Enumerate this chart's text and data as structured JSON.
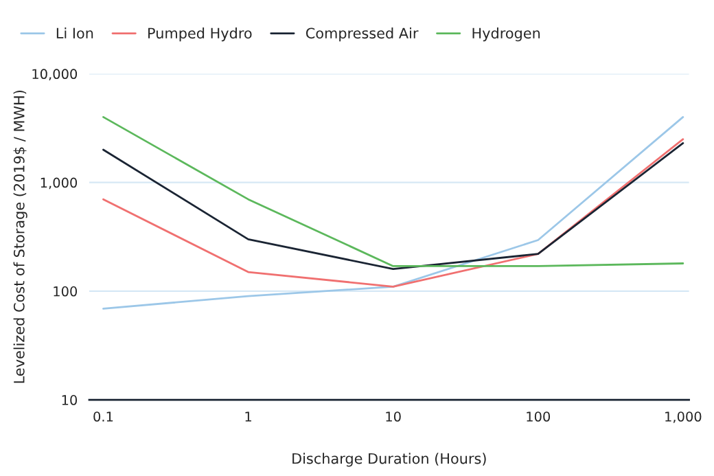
{
  "chart_data": {
    "type": "line",
    "xlabel": "Discharge Duration (Hours)",
    "ylabel": "Levelized Cost of Storage (2019$ / MWH)",
    "x": [
      0.1,
      1,
      10,
      100,
      1000
    ],
    "series": [
      {
        "name": "Li Ion",
        "color": "#9cc7e8",
        "values": [
          69,
          90,
          110,
          295,
          4000
        ]
      },
      {
        "name": "Pumped Hydro",
        "color": "#f07070",
        "values": [
          700,
          150,
          110,
          220,
          2500
        ]
      },
      {
        "name": "Compressed Air",
        "color": "#1a2433",
        "values": [
          2000,
          300,
          160,
          220,
          2300
        ]
      },
      {
        "name": "Hydrogen",
        "color": "#5cb85c",
        "values": [
          4000,
          700,
          170,
          170,
          180
        ]
      }
    ],
    "log": "xy",
    "xlim": [
      0.08,
      1100
    ],
    "ylim": [
      10,
      10000
    ],
    "xticks": [
      {
        "value": 0.1,
        "label": "0.1"
      },
      1,
      10,
      100,
      {
        "value": 1000,
        "label": "1,000"
      }
    ],
    "yticks": [
      10,
      100,
      {
        "value": 1000,
        "label": "1,000"
      },
      {
        "value": 10000,
        "label": "10,000"
      }
    ],
    "grid": "y",
    "legend": "top left",
    "marker": "none",
    "line_style": "solid"
  }
}
